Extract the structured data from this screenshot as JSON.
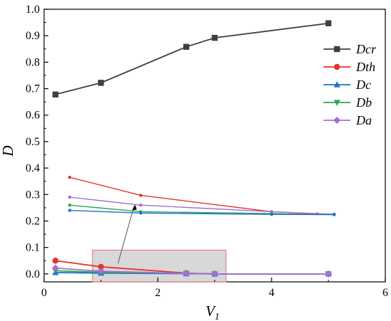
{
  "chart_data": {
    "type": "line",
    "title": "",
    "xlabel": "V",
    "xlabel_subscript": "1",
    "ylabel": "D",
    "xlim": [
      0,
      6
    ],
    "ylim": [
      -0.03,
      1.0
    ],
    "x_ticks": [
      "0",
      "2",
      "4",
      "6"
    ],
    "y_ticks": [
      "0.0",
      "0.1",
      "0.2",
      "0.3",
      "0.4",
      "0.5",
      "0.6",
      "0.7",
      "0.8",
      "0.9",
      "1.0"
    ],
    "grid": false,
    "legend_position": "top-right",
    "series": [
      {
        "name": "Dcr",
        "color": "#404040",
        "marker": "square",
        "x": [
          0.2,
          1.0,
          2.5,
          3.0,
          5.0
        ],
        "y": [
          0.678,
          0.722,
          0.858,
          0.892,
          0.947
        ]
      },
      {
        "name": "Dth",
        "color": "#e8312c",
        "marker": "circle",
        "x": [
          0.2,
          1.0,
          2.5,
          3.0,
          5.0
        ],
        "y": [
          0.05,
          0.027,
          0.003,
          0.0,
          0.0
        ]
      },
      {
        "name": "Dc",
        "color": "#1f6fd1",
        "marker": "triangle-up",
        "x": [
          0.2,
          1.0,
          2.5,
          3.0,
          5.0
        ],
        "y": [
          0.005,
          0.003,
          0.001,
          0.0,
          0.0
        ]
      },
      {
        "name": "Db",
        "color": "#2ea84a",
        "marker": "triangle-down",
        "x": [
          0.2,
          1.0,
          2.5,
          3.0,
          5.0
        ],
        "y": [
          0.012,
          0.006,
          0.002,
          0.0,
          0.0
        ]
      },
      {
        "name": "Da",
        "color": "#a070d8",
        "marker": "diamond",
        "x": [
          0.2,
          1.0,
          2.5,
          3.0,
          5.0
        ],
        "y": [
          0.022,
          0.01,
          0.002,
          0.0,
          0.0
        ]
      }
    ],
    "inset": {
      "note": "zoomed view of the highlighted region, drawn without legend",
      "series": [
        {
          "name": "Dth",
          "color": "#e8312c",
          "x": [
            0.45,
            1.7,
            4.0,
            5.1
          ],
          "y": [
            0.365,
            0.297,
            0.235,
            0.225
          ]
        },
        {
          "name": "Da",
          "color": "#a070d8",
          "x": [
            0.45,
            1.7,
            4.0,
            4.8,
            5.1
          ],
          "y": [
            0.29,
            0.26,
            0.235,
            0.227,
            0.226
          ]
        },
        {
          "name": "Db",
          "color": "#2ea84a",
          "x": [
            0.45,
            1.7,
            4.0,
            5.1
          ],
          "y": [
            0.26,
            0.235,
            0.228,
            0.224
          ]
        },
        {
          "name": "Dc",
          "color": "#1f6fd1",
          "x": [
            0.45,
            1.7,
            4.0,
            5.1
          ],
          "y": [
            0.24,
            0.23,
            0.225,
            0.224
          ]
        }
      ],
      "highlight_box_x": [
        0.85,
        3.2
      ],
      "highlight_box_y": [
        -0.03,
        0.09
      ]
    }
  }
}
